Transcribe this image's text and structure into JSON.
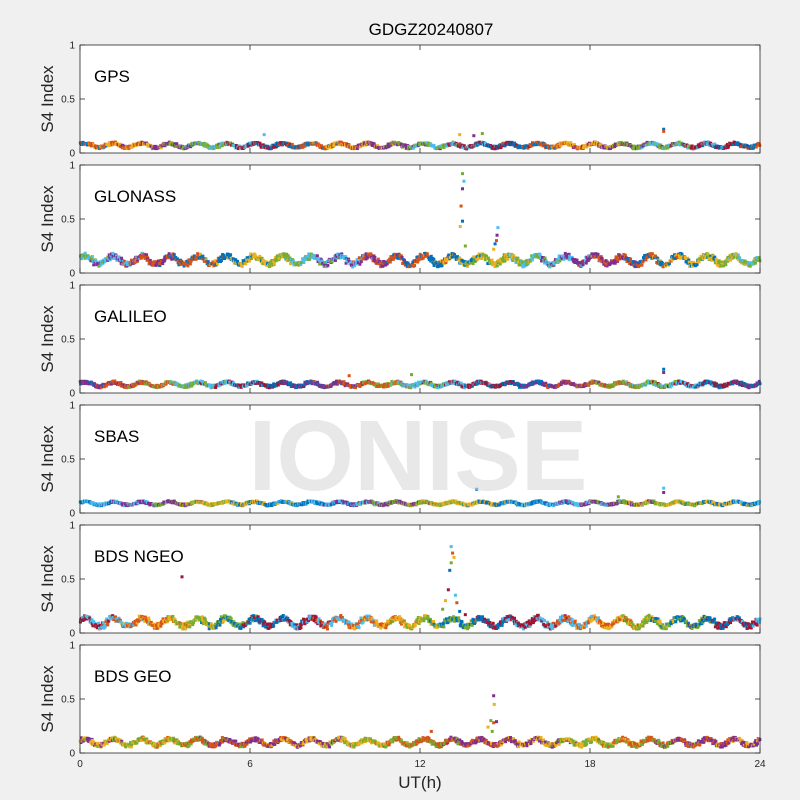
{
  "chart_data": {
    "type": "scatter",
    "title": "GDGZ20240807",
    "watermark": "IONISE",
    "xlabel": "UT(h)",
    "ylabel": "S4 Index",
    "xlim": [
      0,
      24
    ],
    "ylim": [
      0,
      1
    ],
    "xticks": [
      "0",
      "6",
      "12",
      "18",
      "24"
    ],
    "yticks": [
      "0",
      "0.5",
      "1"
    ],
    "grid": false,
    "palette": [
      "#0072bd",
      "#d95319",
      "#edb120",
      "#7e2f8e",
      "#77ac30",
      "#4dbeee",
      "#a2142f"
    ],
    "panels": [
      {
        "name": "GPS",
        "base": 0.07,
        "amp": 0.02,
        "colors": [
          "#0072bd",
          "#d95319",
          "#edb120",
          "#7e2f8e",
          "#77ac30",
          "#4dbeee",
          "#a2142f"
        ],
        "spikes": [
          {
            "x": 20.6,
            "y": 0.22
          },
          {
            "x": 20.6,
            "y": 0.2
          },
          {
            "x": 13.4,
            "y": 0.17
          },
          {
            "x": 13.9,
            "y": 0.16
          },
          {
            "x": 14.2,
            "y": 0.18
          },
          {
            "x": 6.5,
            "y": 0.17
          }
        ]
      },
      {
        "name": "GLONASS",
        "base": 0.12,
        "amp": 0.04,
        "colors": [
          "#77ac30",
          "#4dbeee",
          "#7e2f8e",
          "#d95319",
          "#0072bd",
          "#edb120"
        ],
        "spikes": [
          {
            "x": 13.5,
            "y": 0.92
          },
          {
            "x": 13.55,
            "y": 0.85
          },
          {
            "x": 13.5,
            "y": 0.78
          },
          {
            "x": 13.45,
            "y": 0.62
          },
          {
            "x": 13.5,
            "y": 0.48
          },
          {
            "x": 13.42,
            "y": 0.43
          },
          {
            "x": 13.6,
            "y": 0.25
          },
          {
            "x": 14.75,
            "y": 0.42
          },
          {
            "x": 14.72,
            "y": 0.35
          },
          {
            "x": 14.7,
            "y": 0.3
          },
          {
            "x": 14.65,
            "y": 0.27
          },
          {
            "x": 14.6,
            "y": 0.22
          }
        ]
      },
      {
        "name": "GALILEO",
        "base": 0.08,
        "amp": 0.02,
        "colors": [
          "#0072bd",
          "#7e2f8e",
          "#d95319",
          "#77ac30",
          "#4dbeee",
          "#a2142f"
        ],
        "spikes": [
          {
            "x": 20.6,
            "y": 0.22
          },
          {
            "x": 20.6,
            "y": 0.19
          },
          {
            "x": 9.5,
            "y": 0.16
          },
          {
            "x": 11.7,
            "y": 0.17
          }
        ]
      },
      {
        "name": "SBAS",
        "base": 0.09,
        "amp": 0.015,
        "colors": [
          "#0072bd",
          "#4dbeee",
          "#7e2f8e",
          "#77ac30",
          "#edb120"
        ],
        "spikes": [
          {
            "x": 14.0,
            "y": 0.22
          },
          {
            "x": 20.6,
            "y": 0.23
          },
          {
            "x": 20.6,
            "y": 0.19
          },
          {
            "x": 19.0,
            "y": 0.15
          }
        ]
      },
      {
        "name": "BDS NGEO",
        "base": 0.1,
        "amp": 0.04,
        "colors": [
          "#a2142f",
          "#4dbeee",
          "#d95319",
          "#edb120",
          "#77ac30",
          "#0072bd"
        ],
        "spikes": [
          {
            "x": 3.6,
            "y": 0.52
          },
          {
            "x": 13.1,
            "y": 0.8
          },
          {
            "x": 13.15,
            "y": 0.74
          },
          {
            "x": 13.2,
            "y": 0.7
          },
          {
            "x": 13.1,
            "y": 0.65
          },
          {
            "x": 13.05,
            "y": 0.58
          },
          {
            "x": 13.0,
            "y": 0.4
          },
          {
            "x": 13.25,
            "y": 0.35
          },
          {
            "x": 13.3,
            "y": 0.28
          },
          {
            "x": 12.9,
            "y": 0.3
          },
          {
            "x": 12.8,
            "y": 0.22
          },
          {
            "x": 13.4,
            "y": 0.2
          },
          {
            "x": 13.6,
            "y": 0.17
          }
        ]
      },
      {
        "name": "BDS GEO",
        "base": 0.1,
        "amp": 0.03,
        "colors": [
          "#7e2f8e",
          "#edb120",
          "#77ac30",
          "#d95319"
        ],
        "spikes": [
          {
            "x": 14.6,
            "y": 0.53
          },
          {
            "x": 14.62,
            "y": 0.45
          },
          {
            "x": 14.5,
            "y": 0.3
          },
          {
            "x": 14.6,
            "y": 0.28
          },
          {
            "x": 14.7,
            "y": 0.29
          },
          {
            "x": 14.4,
            "y": 0.24
          },
          {
            "x": 14.55,
            "y": 0.2
          },
          {
            "x": 12.4,
            "y": 0.2
          }
        ]
      }
    ]
  }
}
